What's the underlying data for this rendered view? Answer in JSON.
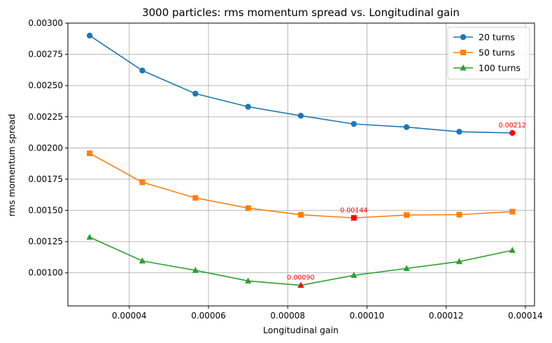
{
  "chart_data": {
    "type": "line",
    "title": "3000 particles: rms momentum spread vs. Longitudinal gain",
    "xlabel": "Longitudinal gain",
    "ylabel": "rms momentum spread",
    "xlim": [
      2.45e-05,
      0.0001423
    ],
    "ylim": [
      0.000735,
      0.003
    ],
    "x": [
      3e-05,
      4.33e-05,
      5.67e-05,
      7e-05,
      8.33e-05,
      9.67e-05,
      0.00011,
      0.0001233,
      0.0001367
    ],
    "xticks": [
      4e-05,
      6e-05,
      8e-05,
      0.0001,
      0.00012,
      0.00014
    ],
    "xtick_labels": [
      "0.00004",
      "0.00006",
      "0.00008",
      "0.00010",
      "0.00012",
      "0.00014"
    ],
    "yticks": [
      0.001,
      0.00125,
      0.0015,
      0.00175,
      0.002,
      0.00225,
      0.0025,
      0.00275,
      0.003
    ],
    "ytick_labels": [
      "0.00100",
      "0.00125",
      "0.00150",
      "0.00175",
      "0.00200",
      "0.00225",
      "0.00250",
      "0.00275",
      "0.00300"
    ],
    "grid": true,
    "legend_position": "top-right",
    "series": [
      {
        "name": "20 turns",
        "color": "#1f77b4",
        "marker": "circle",
        "values": [
          0.0029,
          0.00262,
          0.002435,
          0.00233,
          0.002258,
          0.002192,
          0.002167,
          0.00213,
          0.00212
        ],
        "min_index": 8,
        "min_label": "0.00212"
      },
      {
        "name": "50 turns",
        "color": "#ff7f0e",
        "marker": "square",
        "values": [
          0.001957,
          0.001725,
          0.0016,
          0.001518,
          0.001465,
          0.00144,
          0.001463,
          0.001466,
          0.00149
        ],
        "min_index": 5,
        "min_label": "0.00144"
      },
      {
        "name": "100 turns",
        "color": "#2ca02c",
        "marker": "triangle",
        "values": [
          0.001285,
          0.001095,
          0.00102,
          0.000935,
          0.0009,
          0.00098,
          0.001035,
          0.00109,
          0.00118
        ],
        "min_index": 4,
        "min_label": "0.00090"
      }
    ],
    "highlight_color": "#ff0000"
  }
}
